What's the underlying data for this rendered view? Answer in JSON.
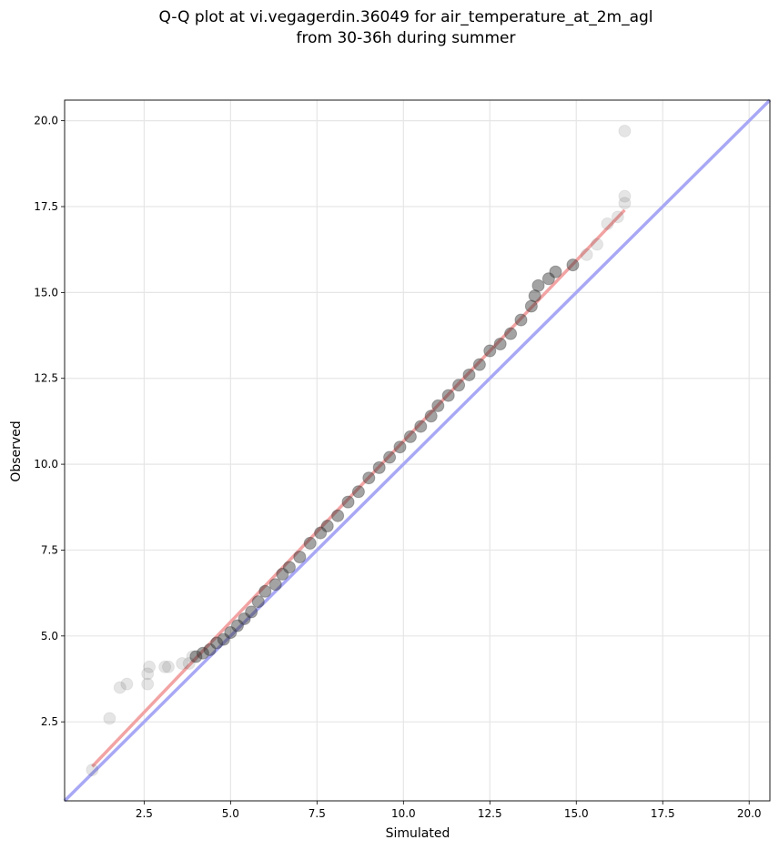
{
  "chart_data": {
    "type": "scatter",
    "title": [
      "Q-Q plot at vi.vegagerdin.36049 for air_temperature_at_2m_agl",
      "from 30-36h during summer"
    ],
    "xlabel": "Simulated",
    "ylabel": "Observed",
    "xlim": [
      0.2,
      20.6
    ],
    "ylim": [
      0.2,
      20.6
    ],
    "xticks": [
      "2.5",
      "5.0",
      "7.5",
      "10.0",
      "12.5",
      "15.0",
      "17.5",
      "20.0"
    ],
    "yticks": [
      "2.5",
      "5.0",
      "7.5",
      "10.0",
      "12.5",
      "15.0",
      "17.5",
      "20.0"
    ],
    "grid": true,
    "colors": {
      "points": "#333333",
      "identity_line": "#a8a8f5",
      "fit_line": "#f2a3a3"
    },
    "identity_line": {
      "x": [
        0.2,
        20.6
      ],
      "y": [
        0.2,
        20.6
      ]
    },
    "fit_line": {
      "x": [
        1.0,
        16.4
      ],
      "y": [
        1.2,
        17.4
      ]
    },
    "series": [
      {
        "values": [
          [
            1.0,
            1.1
          ],
          [
            1.5,
            2.6
          ],
          [
            1.8,
            3.5
          ],
          [
            2.0,
            3.6
          ],
          [
            2.6,
            3.6
          ],
          [
            2.6,
            3.9
          ],
          [
            2.65,
            4.1
          ],
          [
            3.1,
            4.1
          ],
          [
            3.2,
            4.1
          ],
          [
            3.6,
            4.2
          ],
          [
            3.8,
            4.2
          ],
          [
            3.9,
            4.4
          ],
          [
            4.0,
            4.4
          ],
          [
            4.2,
            4.5
          ],
          [
            4.4,
            4.6
          ],
          [
            4.6,
            4.8
          ],
          [
            4.8,
            4.9
          ],
          [
            5.0,
            5.1
          ],
          [
            5.2,
            5.3
          ],
          [
            5.4,
            5.5
          ],
          [
            5.6,
            5.7
          ],
          [
            5.8,
            6.0
          ],
          [
            6.0,
            6.3
          ],
          [
            6.3,
            6.5
          ],
          [
            6.5,
            6.8
          ],
          [
            6.7,
            7.0
          ],
          [
            7.0,
            7.3
          ],
          [
            7.3,
            7.7
          ],
          [
            7.6,
            8.0
          ],
          [
            7.8,
            8.2
          ],
          [
            8.1,
            8.5
          ],
          [
            8.4,
            8.9
          ],
          [
            8.7,
            9.2
          ],
          [
            9.0,
            9.6
          ],
          [
            9.3,
            9.9
          ],
          [
            9.6,
            10.2
          ],
          [
            9.9,
            10.5
          ],
          [
            10.2,
            10.8
          ],
          [
            10.5,
            11.1
          ],
          [
            10.8,
            11.4
          ],
          [
            11.0,
            11.7
          ],
          [
            11.3,
            12.0
          ],
          [
            11.6,
            12.3
          ],
          [
            11.9,
            12.6
          ],
          [
            12.2,
            12.9
          ],
          [
            12.5,
            13.3
          ],
          [
            12.8,
            13.5
          ],
          [
            13.1,
            13.8
          ],
          [
            13.4,
            14.2
          ],
          [
            13.7,
            14.6
          ],
          [
            13.8,
            14.9
          ],
          [
            13.9,
            15.2
          ],
          [
            14.2,
            15.4
          ],
          [
            14.4,
            15.6
          ],
          [
            14.9,
            15.8
          ],
          [
            15.3,
            16.1
          ],
          [
            15.6,
            16.4
          ],
          [
            15.9,
            17.0
          ],
          [
            16.2,
            17.2
          ],
          [
            16.4,
            17.6
          ],
          [
            16.4,
            17.8
          ],
          [
            16.4,
            19.7
          ]
        ]
      }
    ]
  }
}
